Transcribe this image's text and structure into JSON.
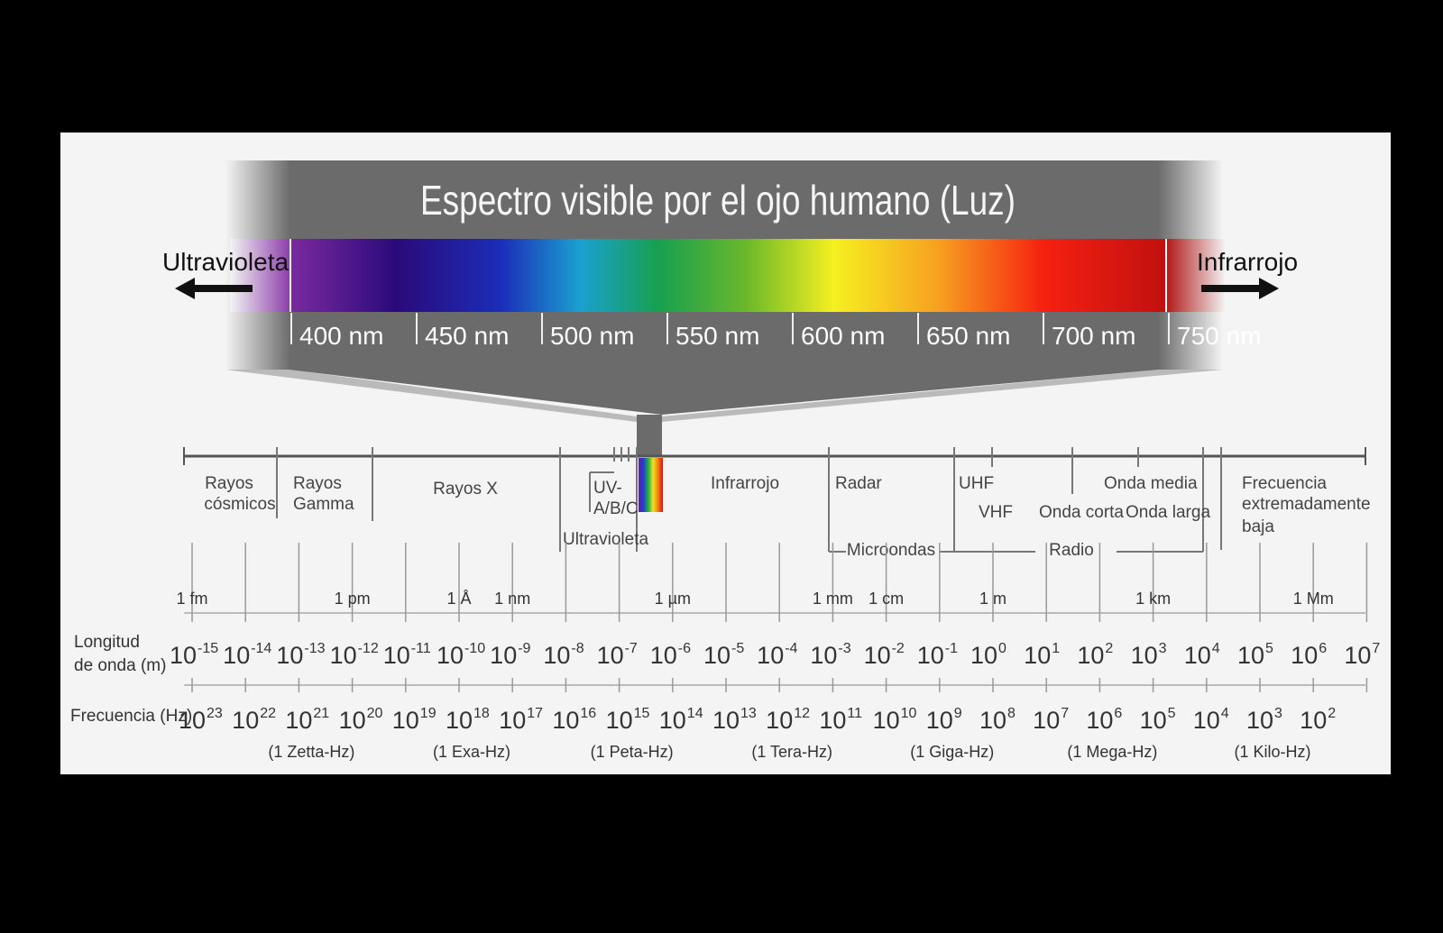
{
  "title": "Espectro visible por el ojo humano (Luz)",
  "visible": {
    "left_label": "Ultravioleta",
    "right_label": "Infrarrojo",
    "ticks": [
      "400 nm",
      "450 nm",
      "500 nm",
      "550 nm",
      "600 nm",
      "650 nm",
      "700 nm",
      "750 nm"
    ]
  },
  "bands": {
    "cosmic": [
      "Rayos",
      "cósmicos"
    ],
    "gamma": [
      "Rayos",
      "Gamma"
    ],
    "xray": "Rayos X",
    "uv_abc": [
      "UV-",
      "A/B/C"
    ],
    "ultraviolet": "Ultravioleta",
    "infrared": "Infrarrojo",
    "radar": "Radar",
    "uhf": "UHF",
    "vhf": "VHF",
    "short_wave": "Onda corta",
    "medium_wave": "Onda media",
    "long_wave": "Onda larga",
    "microwaves": "Microondas",
    "radio": "Radio",
    "elf": [
      "Frecuencia",
      "extremadamente",
      "baja"
    ]
  },
  "named_lengths": [
    "1 fm",
    "1 pm",
    "1 Å",
    "1 nm",
    "1 µm",
    "1 mm",
    "1 cm",
    "1 m",
    "1 km",
    "1 Mm"
  ],
  "wavelength": {
    "label": [
      "Longitud",
      "de onda (m)"
    ],
    "base": "10",
    "exponents": [
      "-15",
      "-14",
      "-13",
      "-12",
      "-11",
      "-10",
      "-9",
      "-8",
      "-7",
      "-6",
      "-5",
      "-4",
      "-3",
      "-2",
      "-1",
      "0",
      "1",
      "2",
      "3",
      "4",
      "5",
      "6",
      "7"
    ]
  },
  "frequency": {
    "label": "Frecuencia (Hz)",
    "base": "10",
    "exponents": [
      "23",
      "22",
      "21",
      "20",
      "19",
      "18",
      "17",
      "16",
      "15",
      "14",
      "13",
      "12",
      "11",
      "10",
      "9",
      "8",
      "7",
      "6",
      "5",
      "4",
      "3",
      "2"
    ],
    "named": [
      "(1 Zetta-Hz)",
      "(1 Exa-Hz)",
      "(1 Peta-Hz)",
      "(1 Tera-Hz)",
      "(1 Giga-Hz)",
      "(1 Mega-Hz)",
      "(1 Kilo-Hz)"
    ]
  },
  "colors": {
    "background": "#000000",
    "panel": "#f4f4f4",
    "banner": "#6b6b6b",
    "axis": "#555555",
    "spectrum_stops": [
      "#7b2aa0",
      "#2a0a7a",
      "#1b2db8",
      "#1aa0d0",
      "#18a050",
      "#6ab82a",
      "#f5f020",
      "#f7a020",
      "#f52010",
      "#c01010"
    ]
  }
}
